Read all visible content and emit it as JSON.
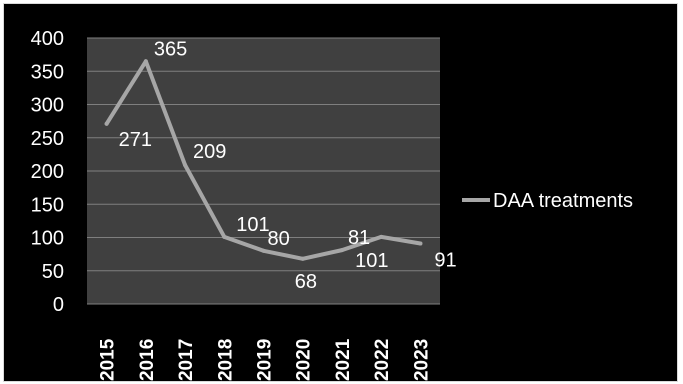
{
  "chart_data": {
    "type": "line",
    "title": "",
    "xlabel": "",
    "ylabel": "",
    "categories": [
      "2015",
      "2016",
      "2017",
      "2018",
      "2019",
      "2020",
      "2021",
      "2022",
      "2023"
    ],
    "series": [
      {
        "name": "DAA treatments",
        "values": [
          271,
          365,
          209,
          101,
          80,
          68,
          81,
          101,
          91
        ],
        "color": "#a6a6a6"
      }
    ],
    "y_ticks": [
      "0",
      "50",
      "100",
      "150",
      "200",
      "250",
      "300",
      "350",
      "400"
    ],
    "ylim": [
      0,
      400
    ],
    "grid": true,
    "legend_position": "right",
    "colors": {
      "background": "#000000",
      "plot_area": "#404040",
      "gridline": "#7f7f7f",
      "text": "#ffffff"
    }
  }
}
